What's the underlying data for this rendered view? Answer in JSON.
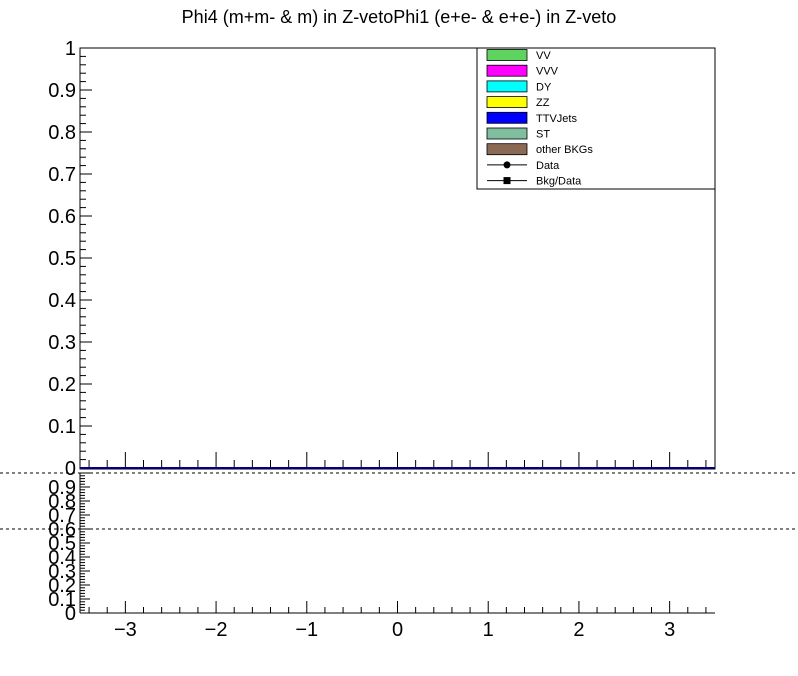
{
  "chart_data": [
    {
      "type": "bar",
      "title": "Phi4 (m+m- & m) in Z-vetoPhi1 (e+e- & e+e-) in Z-veto",
      "xlabel": "",
      "ylabel": "",
      "ylim": [
        0,
        1
      ],
      "y_ticks": [
        "0",
        "0.1",
        "0.2",
        "0.3",
        "0.4",
        "0.5",
        "0.6",
        "0.7",
        "0.8",
        "0.9",
        "1"
      ],
      "grid": false,
      "legend_position": "top-right",
      "legend": [
        {
          "label": "VV",
          "color": "#5fd35f",
          "marker": "box"
        },
        {
          "label": "VVV",
          "color": "#ff00ff",
          "marker": "box"
        },
        {
          "label": "DY",
          "color": "#00ffff",
          "marker": "box"
        },
        {
          "label": "ZZ",
          "color": "#ffff00",
          "marker": "box"
        },
        {
          "label": "TTVJets",
          "color": "#0000ff",
          "marker": "box"
        },
        {
          "label": "ST",
          "color": "#7fbf9f",
          "marker": "box"
        },
        {
          "label": "other BKGs",
          "color": "#8b6a55",
          "marker": "box"
        },
        {
          "label": "Data",
          "color": "#000000",
          "marker": "circle"
        },
        {
          "label": "Bkg/Data",
          "color": "#000000",
          "marker": "square"
        }
      ],
      "series": []
    },
    {
      "type": "line",
      "title": "",
      "xlabel": "",
      "ylabel": "",
      "xlim": [
        -3.5,
        3.5
      ],
      "x_ticks": [
        "−3",
        "−2",
        "−1",
        "0",
        "1",
        "2",
        "3"
      ],
      "ylim": [
        0,
        1
      ],
      "y_ticks": [
        "0",
        "0.1",
        "0.2",
        "0.3",
        "0.4",
        "0.5",
        "0.6",
        "0.7",
        "0.8",
        "0.9"
      ],
      "reference_line_y": 0.6,
      "grid": false,
      "series": []
    }
  ],
  "colors": {
    "frame": "#000000",
    "empty_histogram": "#000080"
  }
}
